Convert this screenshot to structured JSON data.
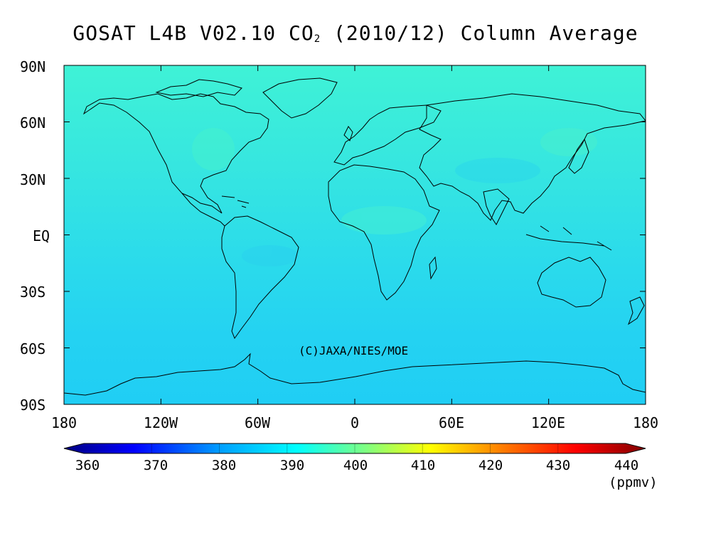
{
  "title": {
    "main": "GOSAT L4B V02.10 CO",
    "sub": "2",
    "rest": " (2010/12) Column Average"
  },
  "map": {
    "lat_ticks": [
      "90N",
      "60N",
      "30N",
      "EQ",
      "30S",
      "60S",
      "90S"
    ],
    "lon_ticks": [
      "180",
      "120W",
      "60W",
      "0",
      "60E",
      "120E",
      "180"
    ],
    "credit": "(C)JAXA/NIES/MOE",
    "field_colors": [
      "#40f0d8",
      "#38e8e0",
      "#30e0e8",
      "#28d8f0",
      "#20d0f4"
    ]
  },
  "colorbar": {
    "tick_labels": [
      "360",
      "370",
      "380",
      "390",
      "400",
      "410",
      "420",
      "430",
      "440"
    ],
    "unit": "(ppmv)",
    "min": 360,
    "max": 440,
    "colors": [
      "#000080",
      "#0000ff",
      "#00a0ff",
      "#00ffff",
      "#80ff80",
      "#ffff00",
      "#ff8000",
      "#ff0000",
      "#800000"
    ]
  }
}
